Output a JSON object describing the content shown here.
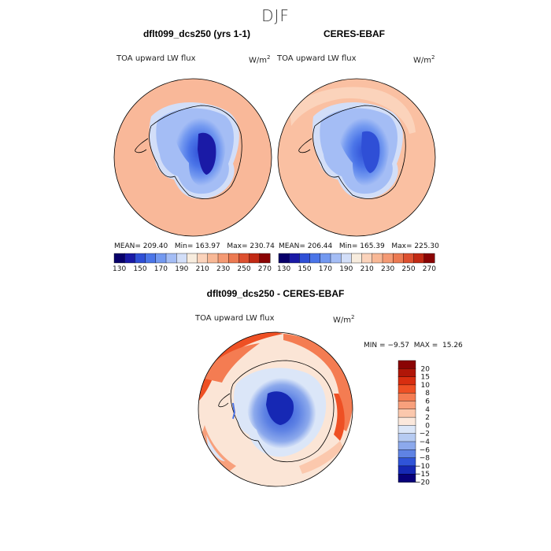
{
  "season": "DJF",
  "panels": [
    {
      "title": "dflt099_dcs250 (yrs 1-1)",
      "variable": "TOA upward LW flux",
      "units": "W/m",
      "units_exp": "2",
      "stats": {
        "mean_label": "MEAN=",
        "mean": "209.40",
        "min_label": "Min=",
        "min": "163.97",
        "max_label": "Max=",
        "max": "230.74"
      }
    },
    {
      "title": "CERES-EBAF",
      "variable": "TOA upward LW flux",
      "units": "W/m",
      "units_exp": "2",
      "stats": {
        "mean_label": "MEAN=",
        "mean": "206.44",
        "min_label": "Min=",
        "min": "165.39",
        "max_label": "Max=",
        "max": "225.30"
      }
    }
  ],
  "diff_panel": {
    "title": "dflt099_dcs250 - CERES-EBAF",
    "variable": "TOA upward LW flux",
    "units": "W/m",
    "units_exp": "2",
    "min_label": "MIN =",
    "min": "−9.57",
    "max_label": "MAX =",
    "max": "15.26"
  },
  "chart_data": [
    {
      "type": "heatmap",
      "projection": "polar stereographic (south pole)",
      "title": "dflt099_dcs250 (yrs 1-1)",
      "variable": "TOA upward LW flux",
      "units": "W/m^2",
      "mean": 209.4,
      "min": 163.97,
      "max": 230.74,
      "colorbar_levels": [
        130,
        140,
        150,
        160,
        170,
        180,
        190,
        200,
        210,
        220,
        230,
        240,
        250,
        260,
        270
      ],
      "colorbar_tick_labels": [
        "130",
        "150",
        "170",
        "190",
        "210",
        "230",
        "250",
        "270"
      ]
    },
    {
      "type": "heatmap",
      "projection": "polar stereographic (south pole)",
      "title": "CERES-EBAF",
      "variable": "TOA upward LW flux",
      "units": "W/m^2",
      "mean": 206.44,
      "min": 165.39,
      "max": 225.3,
      "colorbar_levels": [
        130,
        140,
        150,
        160,
        170,
        180,
        190,
        200,
        210,
        220,
        230,
        240,
        250,
        260,
        270
      ],
      "colorbar_tick_labels": [
        "130",
        "150",
        "170",
        "190",
        "210",
        "230",
        "250",
        "270"
      ]
    },
    {
      "type": "heatmap",
      "projection": "polar stereographic (south pole)",
      "title": "dflt099_dcs250 - CERES-EBAF",
      "variable": "TOA upward LW flux",
      "units": "W/m^2",
      "min": -9.57,
      "max": 15.26,
      "colorbar_levels": [
        20,
        15,
        10,
        8,
        6,
        4,
        2,
        0,
        -2,
        -4,
        -6,
        -8,
        -10,
        -15,
        -20
      ],
      "colorbar_tick_labels": [
        "20",
        "15",
        "10",
        "8",
        "6",
        "4",
        "2",
        "0",
        "−2",
        "−4",
        "−6",
        "−8",
        "−10",
        "−15",
        "−20"
      ]
    }
  ],
  "colors": {
    "abs_palette": [
      "#08006a",
      "#1a1aa6",
      "#2f4fd6",
      "#4b75e8",
      "#7399f0",
      "#a4bdf5",
      "#d2def8",
      "#f7ecde",
      "#fbd3bb",
      "#f8b896",
      "#f49a74",
      "#ec7a52",
      "#dd5030",
      "#c22a14",
      "#8a0404"
    ],
    "diff_palette": [
      "#8a0404",
      "#b01608",
      "#d82e10",
      "#ee5024",
      "#f47c52",
      "#f8a07c",
      "#fbc8ad",
      "#fbe8dc",
      "#dbe6f8",
      "#b6cbf2",
      "#8ca9ec",
      "#5f83e4",
      "#3054d8",
      "#1628b4",
      "#08007a"
    ],
    "ocean_model": "#f9b899",
    "ocean_obs": "#fac0a2",
    "diff_background": "#fbe5d6"
  }
}
